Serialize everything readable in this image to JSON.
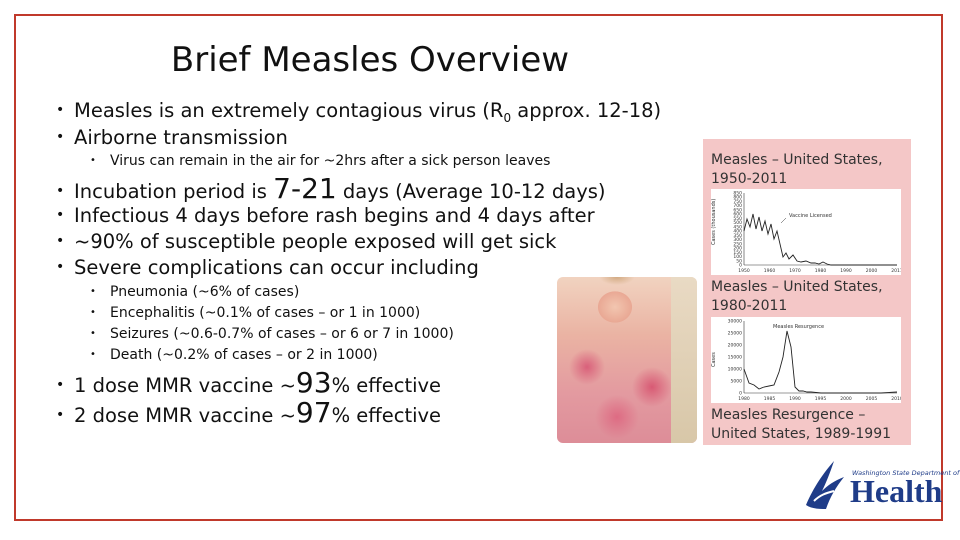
{
  "title": "Brief Measles Overview",
  "bullet_char": "•",
  "bullets": {
    "b1_pre": "Measles is an extremely contagious virus (R",
    "b1_sub": "0",
    "b1_post": " approx. 12-18)",
    "b2": "Airborne transmission",
    "b2_sub": "Virus can remain in the air for ~2hrs after a sick person leaves",
    "b3_pre": "Incubation period is ",
    "b3_big": "7-21",
    "b3_post": " days (Average 10-12 days)",
    "b4": "Infectious 4 days before rash begins and 4 days after",
    "b5": "~90% of susceptible people exposed will get sick",
    "b6": "Severe complications can occur including",
    "complications": [
      "Pneumonia (~6% of cases)",
      "Encephalitis (~0.1% of cases – or 1 in 1000)",
      "Seizures (~0.6-0.7% of cases – or 6 or 7 in 1000)",
      "Death (~0.2% of cases – or 2 in 1000)"
    ],
    "v1_pre": "1 dose MMR vaccine ~",
    "v1_big": "93",
    "v1_post": "% effective",
    "v2_pre": "2 dose MMR vaccine ~",
    "v2_big": "97",
    "v2_post": "% effective"
  },
  "panel": {
    "title1": "Measles – United States, 1950-2011",
    "chart1_annotation": "Vaccine Licensed",
    "chart1_ylabel": "Cases (thousands)",
    "chart1_yticks": [
      "850",
      "800",
      "750",
      "700",
      "650",
      "600",
      "550",
      "500",
      "450",
      "400",
      "350",
      "300",
      "250",
      "200",
      "150",
      "100",
      "50",
      "0"
    ],
    "chart1_xticks": [
      "1950",
      "1960",
      "1970",
      "1980",
      "1990",
      "2000",
      "2011"
    ],
    "title2": "Measles – United States, 1980-2011",
    "chart2_annotation": "Measles Resurgence",
    "chart2_ylabel": "Cases",
    "chart2_yticks": [
      "30000",
      "25000",
      "20000",
      "15000",
      "10000",
      "5000",
      "0"
    ],
    "chart2_xticks": [
      "1980",
      "1985",
      "1990",
      "1995",
      "2000",
      "2005",
      "2010"
    ],
    "title3": "Measles Resurgence – United States, 1989-1991"
  },
  "logo": {
    "small": "Washington State Department of",
    "word": "Health"
  },
  "colors": {
    "frame": "#c0392b",
    "panel": "#f4c7c7",
    "logo": "#1f3c88"
  }
}
